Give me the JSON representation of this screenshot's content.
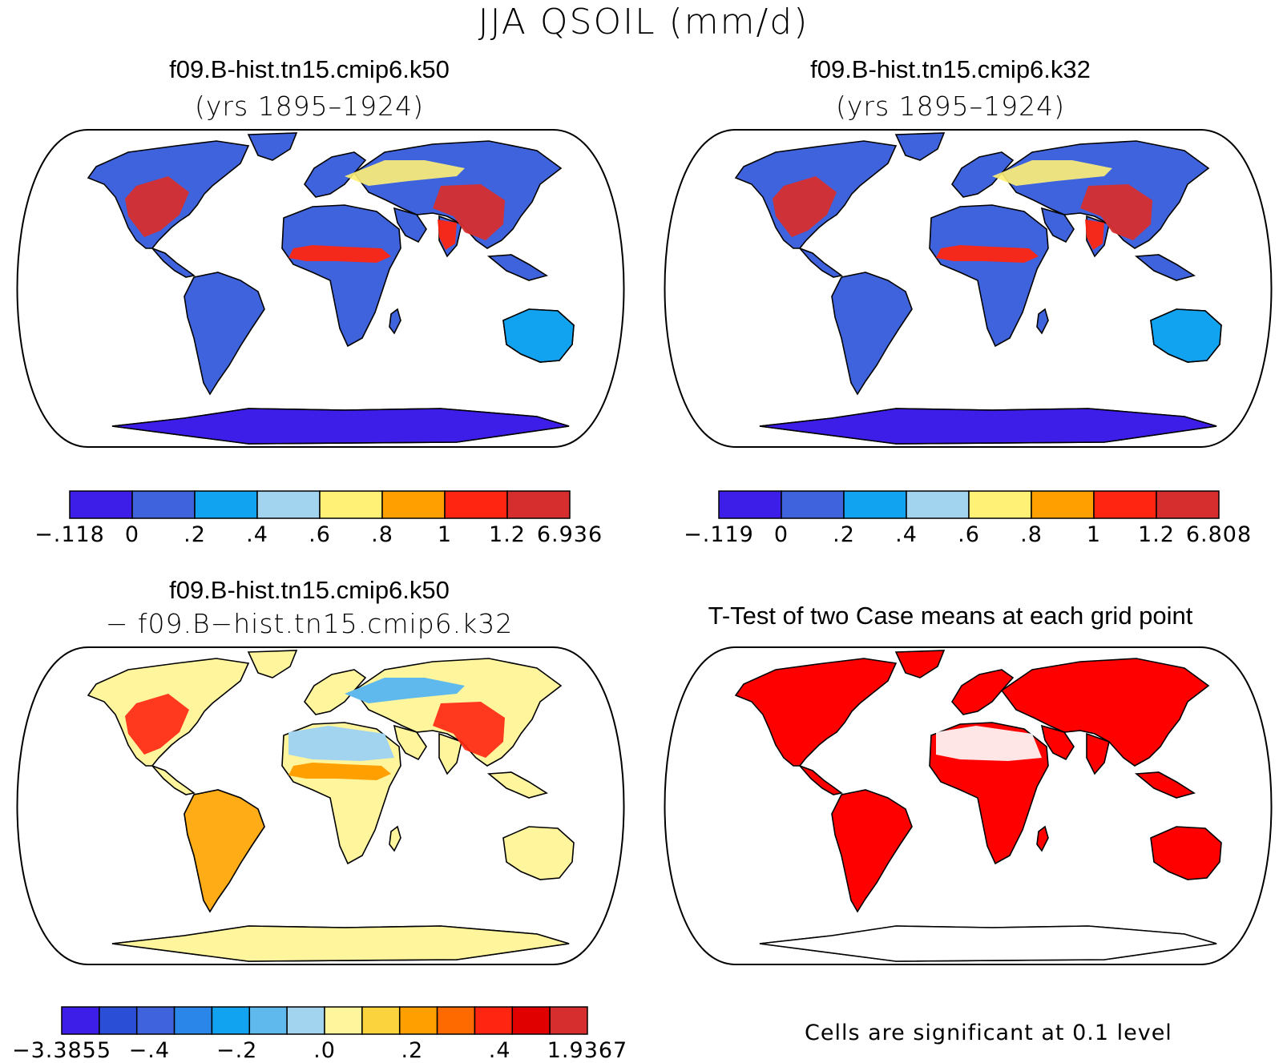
{
  "figure": {
    "title": "JJA QSOIL (mm/d)"
  },
  "panels": [
    {
      "id": "k50",
      "title": "f09.B-hist.tn15.cmip6.k50",
      "subtitle": "(yrs 1895–1924)",
      "colorbar": {
        "colors": [
          "#3c1ee8",
          "#3f63dc",
          "#11a3f0",
          "#a2d4ef",
          "#fff176",
          "#ffa000",
          "#ff2511",
          "#d62e2e"
        ],
        "labels": [
          "−.118",
          "0",
          ".2",
          ".4",
          ".6",
          ".8",
          "1",
          "1.2",
          "6.936"
        ]
      }
    },
    {
      "id": "k32",
      "title": "f09.B-hist.tn15.cmip6.k32",
      "subtitle": "(yrs 1895–1924)",
      "colorbar": {
        "colors": [
          "#3c1ee8",
          "#3f63dc",
          "#11a3f0",
          "#a2d4ef",
          "#fff176",
          "#ffa000",
          "#ff2511",
          "#d62e2e"
        ],
        "labels": [
          "−.119",
          "0",
          ".2",
          ".4",
          ".6",
          ".8",
          "1",
          "1.2",
          "6.808"
        ]
      }
    },
    {
      "id": "diff",
      "title": "f09.B-hist.tn15.cmip6.k50",
      "subtitle": "− f09.B−hist.tn15.cmip6.k32",
      "colorbar": {
        "colors": [
          "#3c1ee8",
          "#2a4ed6",
          "#3f63dc",
          "#2a86e8",
          "#11a3f0",
          "#5fb9ec",
          "#a2d4ef",
          "#fff59d",
          "#fbd33c",
          "#ffa000",
          "#ff6a00",
          "#ff2511",
          "#e00000",
          "#d62e2e"
        ],
        "labels": [
          "−3.3855",
          "−.4",
          "−.2",
          ".0",
          ".2",
          ".4",
          "1.9367"
        ]
      }
    },
    {
      "id": "ttest",
      "title": "T-Test of two Case means at each grid point",
      "footnote": "Cells are significant at 0.1 level",
      "significant_color": "#ff0000"
    }
  ]
}
